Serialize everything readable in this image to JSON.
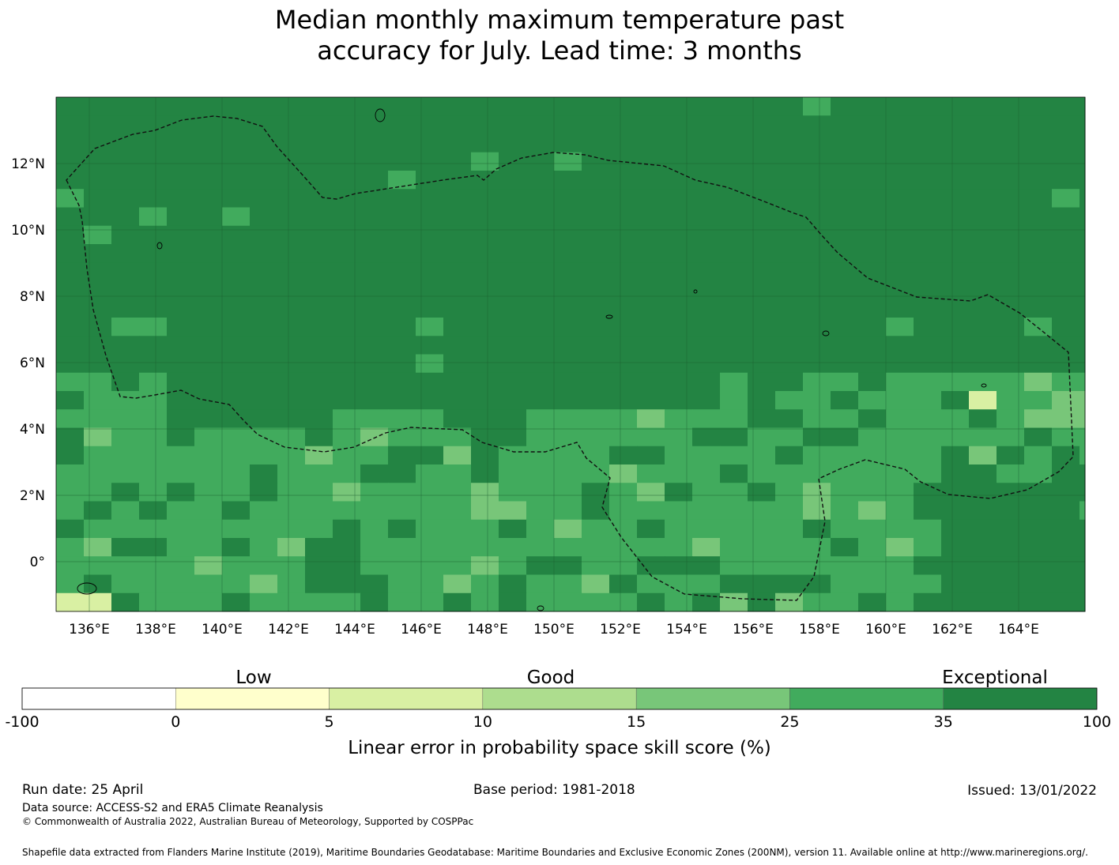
{
  "title": {
    "line1": "Median monthly maximum temperature past",
    "line2": "accuracy for July. Lead time: 3 months"
  },
  "map": {
    "lon_ticks": [
      "136°E",
      "138°E",
      "140°E",
      "142°E",
      "144°E",
      "146°E",
      "148°E",
      "150°E",
      "152°E",
      "154°E",
      "156°E",
      "158°E",
      "160°E",
      "162°E",
      "164°E"
    ],
    "lat_ticks": [
      "12°N",
      "10°N",
      "8°N",
      "6°N",
      "4°N",
      "2°N",
      "0°"
    ],
    "lon_range": [
      135.0,
      166.0
    ],
    "lat_range": [
      -1.5,
      14.0
    ],
    "grid": true,
    "boundary_style": "dashed",
    "colors": {
      "c35": "#238443",
      "c25": "#41ab5d",
      "c15": "#78c679",
      "c10": "#addd8e",
      "c5": "#d9f0a3",
      "c0": "#ffffcc"
    }
  },
  "colorbar": {
    "categories": [
      "Low",
      "Good",
      "Exceptional"
    ],
    "bounds": [
      "-100",
      "0",
      "5",
      "10",
      "15",
      "25",
      "35",
      "100"
    ],
    "colors": [
      "#ffffff",
      "#ffffcc",
      "#d9f0a3",
      "#addd8e",
      "#78c679",
      "#41ab5d",
      "#238443"
    ],
    "label": "Linear error in probability space skill score (%)"
  },
  "footer": {
    "run_date": "Run date: 25 April",
    "base_period": "Base period: 1981-2018",
    "issued": "Issued: 13/01/2022",
    "data_source": "Data source: ACCESS-S2 and ERA5 Climate Reanalysis",
    "copyright": "© Commonwealth of Australia 2022, Australian Bureau of Meteorology, Supported by COSPPac",
    "shapefile": "Shapefile data extracted from Flanders Marine Institute (2019), Maritime Boundaries Geodatabase: Maritime Boundaries and Exclusive Economic Zones (200NM), version 11. Available online at http://www.marineregions.org/."
  }
}
